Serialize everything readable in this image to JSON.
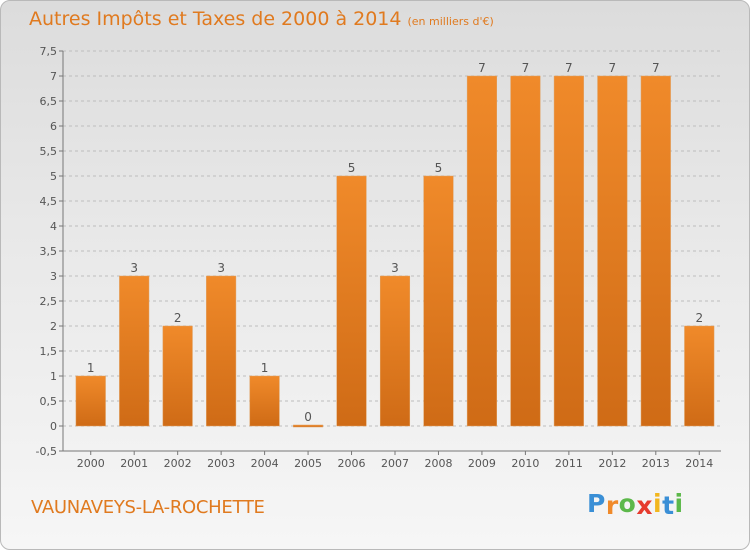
{
  "chart_data": {
    "type": "bar",
    "title": "Autres Impôts et Taxes de 2000 à 2014",
    "unit_label": "(en milliers d'€)",
    "categories": [
      "2000",
      "2001",
      "2002",
      "2003",
      "2004",
      "2005",
      "2006",
      "2007",
      "2008",
      "2009",
      "2010",
      "2011",
      "2012",
      "2013",
      "2014"
    ],
    "values": [
      1,
      3,
      2,
      3,
      1,
      0,
      5,
      3,
      5,
      7,
      7,
      7,
      7,
      7,
      2
    ],
    "data_labels": [
      "1",
      "3",
      "2",
      "3",
      "1",
      "0",
      "5",
      "3",
      "5",
      "7",
      "7",
      "7",
      "7",
      "7",
      "2"
    ],
    "ylim": [
      -0.5,
      7.5
    ],
    "yticks": [
      -0.5,
      0,
      0.5,
      1,
      1.5,
      2,
      2.5,
      3,
      3.5,
      4,
      4.5,
      5,
      5.5,
      6,
      6.5,
      7,
      7.5
    ],
    "ytick_labels": [
      "-0,5",
      "0",
      "0,5",
      "1",
      "1,5",
      "2",
      "2,5",
      "3",
      "3,5",
      "4",
      "4,5",
      "5",
      "5,5",
      "6",
      "6,5",
      "7",
      "7,5"
    ],
    "grid": "horizontal-dashed",
    "bar_color": "#f08a2a",
    "bar_color_dark": "#cf6b16"
  },
  "commune": "VAUNAVEYS-LA-ROCHETTE",
  "logo": {
    "letters": [
      "P",
      "r",
      "o",
      "x",
      "i",
      "t",
      "i"
    ],
    "colors": [
      "#3a8fd6",
      "#f08a2a",
      "#5cb84a",
      "#e63b2e",
      "#f2b61e",
      "#3a8fd6",
      "#5cb84a"
    ]
  }
}
